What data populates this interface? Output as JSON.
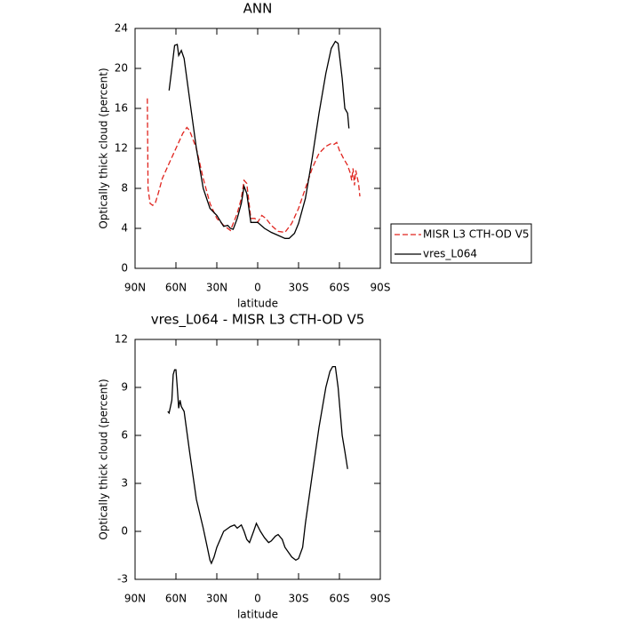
{
  "chart_data": [
    {
      "type": "line",
      "title": "ANN",
      "xlabel": "latitude",
      "ylabel": "Optically thick cloud (percent)",
      "xlim": [
        90,
        -90
      ],
      "xticks": [
        {
          "value": 90,
          "label": "90N"
        },
        {
          "value": 60,
          "label": "60N"
        },
        {
          "value": 30,
          "label": "30N"
        },
        0,
        {
          "value": -30,
          "label": "30S"
        },
        {
          "value": -60,
          "label": "60S"
        },
        {
          "value": -90,
          "label": "90S"
        }
      ],
      "ylim": [
        0,
        24
      ],
      "yticks": [
        0,
        4,
        8,
        12,
        16,
        20,
        24
      ],
      "legend": "outside-right",
      "series": [
        {
          "name": "MISR L3 CTH-OD V5",
          "color": "#e0241e",
          "style": "dashed",
          "x": [
            81,
            80.5,
            79,
            77,
            75,
            73,
            70,
            65,
            60,
            55,
            52,
            50,
            45,
            40,
            35,
            30,
            25,
            20,
            15,
            12,
            10,
            8,
            5,
            2,
            0,
            -3,
            -6,
            -10,
            -15,
            -20,
            -25,
            -30,
            -35,
            -40,
            -45,
            -50,
            -54,
            -56,
            -58,
            -60,
            -63,
            -66,
            -68,
            -69,
            -70,
            -71,
            -72,
            -74,
            -75
          ],
          "values": [
            17,
            8,
            6.5,
            6.3,
            6.6,
            7.5,
            9,
            10.5,
            12,
            13.5,
            14.1,
            13.8,
            12,
            9,
            6.5,
            5,
            4.3,
            3.8,
            5.5,
            7,
            8.8,
            8.5,
            5,
            5,
            4.6,
            5.3,
            5,
            4.3,
            3.7,
            3.6,
            4.5,
            6,
            8,
            10,
            11.5,
            12.2,
            12.5,
            12.4,
            12.6,
            11.8,
            11,
            10.3,
            9.5,
            8.8,
            10,
            8.3,
            9.8,
            8.5,
            7.2
          ]
        },
        {
          "name": "vres_L064",
          "color": "#000000",
          "style": "solid",
          "x": [
            65,
            63,
            61,
            59,
            58,
            56,
            54,
            50,
            45,
            40,
            35,
            30,
            25,
            22,
            20,
            18,
            15,
            12,
            10,
            8,
            5,
            0,
            -5,
            -10,
            -15,
            -20,
            -23,
            -27,
            -30,
            -35,
            -40,
            -45,
            -50,
            -54,
            -57,
            -59,
            -62,
            -64,
            -66,
            -67
          ],
          "values": [
            17.8,
            20,
            22.3,
            22.4,
            21.3,
            21.8,
            21,
            17,
            12,
            8,
            6,
            5.3,
            4.2,
            4.3,
            4,
            3.9,
            5,
            6.5,
            8.2,
            7.5,
            4.6,
            4.6,
            4,
            3.6,
            3.3,
            3,
            3,
            3.5,
            4.5,
            7,
            11,
            15.5,
            19.5,
            22,
            22.7,
            22.5,
            19,
            16,
            15.5,
            14
          ]
        }
      ]
    },
    {
      "type": "line",
      "title": "vres_L064 - MISR L3 CTH-OD V5",
      "xlabel": "latitude",
      "ylabel": "Optically thick cloud (percent)",
      "xlim": [
        90,
        -90
      ],
      "xticks": [
        {
          "value": 90,
          "label": "90N"
        },
        {
          "value": 60,
          "label": "60N"
        },
        {
          "value": 30,
          "label": "30N"
        },
        0,
        {
          "value": -30,
          "label": "30S"
        },
        {
          "value": -60,
          "label": "60S"
        },
        {
          "value": -90,
          "label": "90S"
        }
      ],
      "ylim": [
        -3,
        12
      ],
      "yticks": [
        -3,
        0,
        3,
        6,
        9,
        12
      ],
      "color": "#000000",
      "x": [
        66,
        65,
        63,
        62,
        61,
        60,
        59,
        58,
        57,
        56,
        54,
        50,
        45,
        40,
        37,
        35,
        34,
        32,
        30,
        25,
        20,
        17,
        15,
        12,
        10,
        8,
        6,
        3,
        1,
        -2,
        -5,
        -8,
        -10,
        -13,
        -15,
        -18,
        -20,
        -25,
        -28,
        -30,
        -33,
        -35,
        -40,
        -45,
        -50,
        -53,
        -55,
        -57,
        -59,
        -62,
        -64,
        -66
      ],
      "values": [
        7.5,
        7.4,
        8.2,
        9.8,
        10.1,
        10.1,
        9,
        7.7,
        8.2,
        7.8,
        7.5,
        5,
        2,
        0.2,
        -1,
        -1.8,
        -2,
        -1.6,
        -1,
        0,
        0.3,
        0.4,
        0.2,
        0.4,
        0,
        -0.5,
        -0.7,
        0,
        0.5,
        0,
        -0.4,
        -0.7,
        -0.6,
        -0.3,
        -0.2,
        -0.5,
        -1,
        -1.6,
        -1.8,
        -1.7,
        -1,
        0.5,
        3.5,
        6.5,
        9,
        10,
        10.3,
        10.3,
        9,
        6,
        5,
        3.9
      ]
    }
  ]
}
